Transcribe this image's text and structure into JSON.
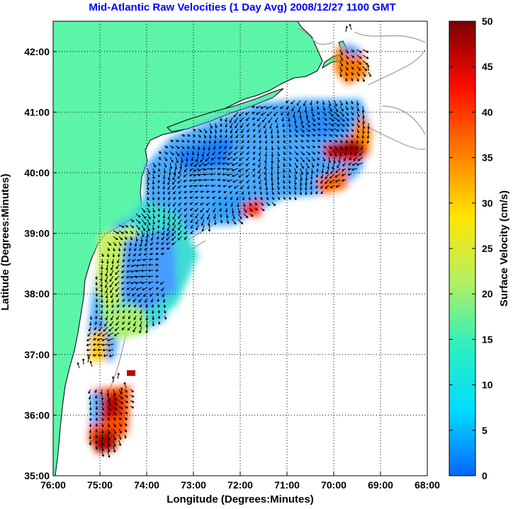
{
  "chart_data": {
    "type": "heatmap",
    "title": "Mid-Atlantic Raw Velocities (1 Day Avg) 2008/12/27 1100 GMT",
    "xlabel": "Longitude (Degrees:Minutes)",
    "ylabel": "Latitude (Degrees:Minutes)",
    "x_ticks": [
      "76:00",
      "75:00",
      "74:00",
      "73:00",
      "72:00",
      "71:00",
      "70:00",
      "69:00",
      "68:00"
    ],
    "y_ticks": [
      "42:00",
      "41:00",
      "40:00",
      "39:00",
      "38:00",
      "37:00",
      "36:00",
      "35:00"
    ],
    "xlim": [
      -76,
      -68
    ],
    "ylim": [
      35,
      42.5
    ],
    "grid": true,
    "colorbar": {
      "label": "Surface Velocity (cm/s)",
      "ticks": [
        "0",
        "5",
        "10",
        "15",
        "20",
        "25",
        "30",
        "35",
        "40",
        "45",
        "50"
      ],
      "range": [
        0,
        50
      ],
      "stops": [
        "#0a64ff",
        "#00dcff",
        "#2cf0c0",
        "#b6f060",
        "#ffe600",
        "#ff7a00",
        "#ff0a00",
        "#7a0000"
      ]
    },
    "colors": {
      "land": "#5cf5a8",
      "ocean": "#ffffff",
      "grid": "#000000",
      "bathymetry": "#9a9a9a",
      "title": "#0000ff",
      "arrow": "#000000"
    }
  }
}
